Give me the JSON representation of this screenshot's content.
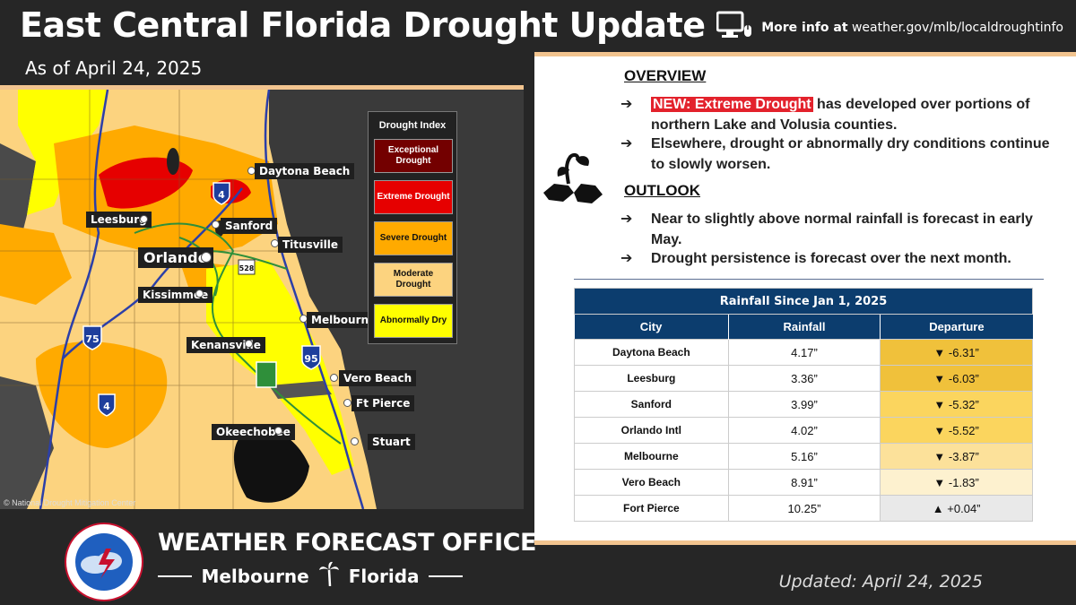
{
  "header": {
    "title": "East Central Florida Drought Update",
    "subtitle": "As of April 24, 2025",
    "more_info_prefix": "More info at",
    "more_info_url": "weather.gov/mlb/localdroughtinfo"
  },
  "map": {
    "credit": "© National Drought Mitigation Center",
    "cities": {
      "daytona": "Daytona Beach",
      "leesburg": "Leesburg",
      "sanford": "Sanford",
      "titusville": "Titusville",
      "orlando": "Orlando",
      "kissimmee": "Kissimmee",
      "melbourne": "Melbourne",
      "kenansville": "Kenansville",
      "vero": "Vero Beach",
      "ftpierce": "Ft Pierce",
      "okeechobee": "Okeechobee",
      "stuart": "Stuart"
    },
    "shields": {
      "i4_north": "4",
      "i4_south": "4",
      "i75": "75",
      "i95": "95",
      "sr528": "528"
    },
    "legend": {
      "title": "Drought Index",
      "items": [
        {
          "label": "Exceptional Drought",
          "color": "#730000"
        },
        {
          "label": "Extreme Drought",
          "color": "#e60000"
        },
        {
          "label": "Severe Drought",
          "color": "#ffaa00"
        },
        {
          "label": "Moderate Drought",
          "color": "#fcd37f"
        },
        {
          "label": "Abnormally Dry",
          "color": "#ffff00"
        }
      ]
    }
  },
  "overview": {
    "heading": "OVERVIEW",
    "bullet1_highlight": "NEW: Extreme Drought",
    "bullet1_rest": " has developed over portions of northern Lake and Volusia counties.",
    "bullet2": "Elsewhere, drought or abnormally dry conditions continue to slowly worsen."
  },
  "outlook": {
    "heading": "OUTLOOK",
    "bullet1": "Near to slightly above normal rainfall is forecast in early May.",
    "bullet2": "Drought persistence is forecast over the next month."
  },
  "table": {
    "title": "Rainfall Since Jan 1, 2025",
    "headers": [
      "City",
      "Rainfall",
      "Departure"
    ],
    "rows": [
      {
        "city": "Daytona Beach",
        "rainfall": "4.17”",
        "departure": "▼ -6.31”",
        "color": "#f0c13b"
      },
      {
        "city": "Leesburg",
        "rainfall": "3.36”",
        "departure": "▼ -6.03”",
        "color": "#f0c13b"
      },
      {
        "city": "Sanford",
        "rainfall": "3.99”",
        "departure": "▼ -5.32”",
        "color": "#fbd55e"
      },
      {
        "city": "Orlando Intl",
        "rainfall": "4.02”",
        "departure": "▼ -5.52”",
        "color": "#fbd55e"
      },
      {
        "city": "Melbourne",
        "rainfall": "5.16”",
        "departure": "▼ -3.87”",
        "color": "#fce19a"
      },
      {
        "city": "Vero Beach",
        "rainfall": "8.91”",
        "departure": "▼ -1.83”",
        "color": "#fdf1cf"
      },
      {
        "city": "Fort Pierce",
        "rainfall": "10.25”",
        "departure": "▲ +0.04”",
        "color": "#e9e9e9"
      }
    ]
  },
  "footer": {
    "office": "WEATHER FORECAST OFFICE",
    "city": "Melbourne",
    "state": "Florida",
    "logo_text": "NATIONAL WEATHER SERVICE",
    "updated": "Updated: April 24, 2025"
  }
}
